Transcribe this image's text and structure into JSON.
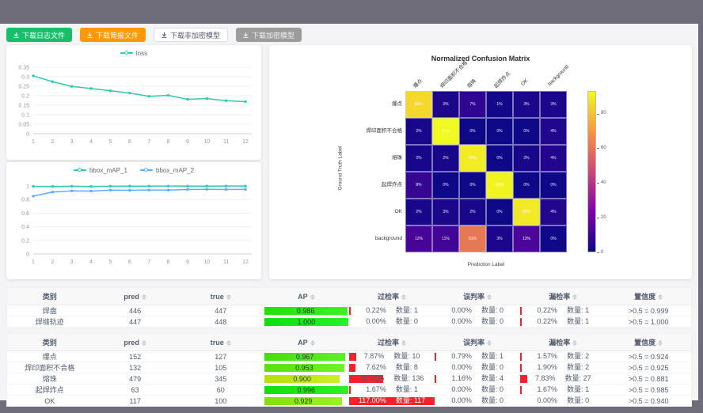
{
  "toolbar": {
    "buttons": [
      {
        "label": "下载日志文件",
        "variant": "success"
      },
      {
        "label": "下载简报文件",
        "variant": "warning"
      },
      {
        "label": "下载非加密模型",
        "variant": "default"
      },
      {
        "label": "下载加密模型",
        "variant": "disabled"
      }
    ]
  },
  "chart_data": [
    {
      "type": "line",
      "title": "",
      "legend": [
        "loss"
      ],
      "x": [
        1,
        2,
        3,
        4,
        5,
        6,
        7,
        8,
        9,
        10,
        11,
        12
      ],
      "series": [
        {
          "name": "loss",
          "color": "#2fc9b2",
          "values": [
            0.305,
            0.274,
            0.249,
            0.238,
            0.226,
            0.214,
            0.197,
            0.202,
            0.181,
            0.185,
            0.174,
            0.169
          ]
        }
      ],
      "ylim": [
        0,
        0.35
      ],
      "yticks": [
        0,
        0.05,
        0.1,
        0.15,
        0.2,
        0.25,
        0.3,
        0.35
      ],
      "grid": true,
      "legend_position": "top"
    },
    {
      "type": "line",
      "title": "",
      "legend": [
        "bbox_mAP_1",
        "bbox_mAP_2"
      ],
      "x": [
        1,
        2,
        3,
        4,
        5,
        6,
        7,
        8,
        9,
        10,
        11,
        12
      ],
      "series": [
        {
          "name": "bbox_mAP_1",
          "color": "#2fc9b2",
          "values": [
            0.993,
            0.992,
            0.995,
            0.992,
            0.996,
            0.997,
            0.997,
            0.998,
            0.997,
            0.997,
            0.998,
            0.998
          ]
        },
        {
          "name": "bbox_mAP_2",
          "color": "#5cadff",
          "values": [
            0.85,
            0.91,
            0.928,
            0.925,
            0.938,
            0.936,
            0.94,
            0.939,
            0.948,
            0.95,
            0.948,
            0.949
          ]
        }
      ],
      "ylim": [
        0,
        1
      ],
      "yticks": [
        0,
        0.2,
        0.4,
        0.6,
        0.8,
        1
      ],
      "grid": true,
      "legend_position": "top"
    },
    {
      "type": "heatmap",
      "title": "Normalized Confusion Matrix",
      "xlabel": "Prediction Label",
      "ylabel": "Ground Truth Label",
      "labels": [
        "爆点",
        "焊印面积不合格",
        "熔珠",
        "起焊炸点",
        "OK",
        "background"
      ],
      "matrix": [
        [
          85,
          3,
          7,
          1,
          3,
          3
        ],
        [
          2,
          93,
          0,
          0,
          0,
          4
        ],
        [
          2,
          2,
          90,
          0,
          2,
          4
        ],
        [
          8,
          0,
          0,
          92,
          0,
          0
        ],
        [
          2,
          3,
          2,
          0,
          89,
          4
        ],
        [
          12,
          11,
          61,
          3,
          13,
          0
        ]
      ],
      "unit": "%",
      "vmax": 93,
      "colormap": "plasma",
      "colorbar_ticks": [
        0,
        20,
        40,
        60,
        80
      ],
      "legend_position": "right"
    }
  ],
  "tables": [
    {
      "headers": [
        {
          "label": "类别",
          "sortable": false
        },
        {
          "label": "pred",
          "sortable": true
        },
        {
          "label": "true",
          "sortable": true
        },
        {
          "label": "AP",
          "sortable": true
        },
        {
          "label": "过检率",
          "sortable": true
        },
        {
          "label": "误判率",
          "sortable": true
        },
        {
          "label": "漏检率",
          "sortable": true
        },
        {
          "label": "置信度",
          "sortable": true
        }
      ],
      "rows": [
        {
          "name": "焊盘",
          "pred": "446",
          "true": "447",
          "ap": "0.986",
          "rates": [
            {
              "pct": "0.22%",
              "count": "数量: 1",
              "value": 0.22
            },
            {
              "pct": "0.00%",
              "count": "数量: 0",
              "value": 0
            },
            {
              "pct": "0.22%",
              "count": "数量: 1",
              "value": 0.22
            }
          ],
          "conf": ">0.5 = 0.999"
        },
        {
          "name": "焊缝轨迹",
          "pred": "447",
          "true": "448",
          "ap": "1.000",
          "rates": [
            {
              "pct": "0.00%",
              "count": "数量: 0",
              "value": 0
            },
            {
              "pct": "0.00%",
              "count": "数量: 0",
              "value": 0
            },
            {
              "pct": "0.22%",
              "count": "数量: 1",
              "value": 0.22
            }
          ],
          "conf": ">0.5 = 1.000"
        }
      ]
    },
    {
      "headers": [
        {
          "label": "类别",
          "sortable": false
        },
        {
          "label": "pred",
          "sortable": true
        },
        {
          "label": "true",
          "sortable": true
        },
        {
          "label": "AP",
          "sortable": true
        },
        {
          "label": "过检率",
          "sortable": true
        },
        {
          "label": "误判率",
          "sortable": true
        },
        {
          "label": "漏检率",
          "sortable": true
        },
        {
          "label": "置信度",
          "sortable": true
        }
      ],
      "rows": [
        {
          "name": "爆点",
          "pred": "152",
          "true": "127",
          "ap": "0.967",
          "rates": [
            {
              "pct": "7.87%",
              "count": "数量: 10",
              "value": 7.87
            },
            {
              "pct": "0.79%",
              "count": "数量: 1",
              "value": 0.79
            },
            {
              "pct": "1.57%",
              "count": "数量: 2",
              "value": 1.57
            }
          ],
          "conf": ">0.5 = 0.924"
        },
        {
          "name": "焊印面积不合格",
          "pred": "132",
          "true": "105",
          "ap": "0.953",
          "rates": [
            {
              "pct": "7.62%",
              "count": "数量: 8",
              "value": 7.62
            },
            {
              "pct": "0.00%",
              "count": "数量: 0",
              "value": 0
            },
            {
              "pct": "1.90%",
              "count": "数量: 2",
              "value": 1.9
            }
          ],
          "conf": ">0.5 = 0.925"
        },
        {
          "name": "熔珠",
          "pred": "479",
          "true": "345",
          "ap": "0.900",
          "rates": [
            {
              "pct": "39.42%",
              "count": "数量: 136",
              "value": 39.42
            },
            {
              "pct": "1.16%",
              "count": "数量: 4",
              "value": 1.16
            },
            {
              "pct": "7.83%",
              "count": "数量: 27",
              "value": 7.83
            }
          ],
          "conf": ">0.5 = 0.881"
        },
        {
          "name": "起焊炸点",
          "pred": "63",
          "true": "60",
          "ap": "0.996",
          "rates": [
            {
              "pct": "1.67%",
              "count": "数量: 1",
              "value": 1.67
            },
            {
              "pct": "0.00%",
              "count": "数量: 0",
              "value": 0
            },
            {
              "pct": "1.67%",
              "count": "数量: 1",
              "value": 1.67
            }
          ],
          "conf": ">0.5 = 0.985"
        },
        {
          "name": "OK",
          "pred": "117",
          "true": "100",
          "ap": "0.929",
          "rates": [
            {
              "pct": "117.00%",
              "count": "数量: 117",
              "value": 117
            },
            {
              "pct": "0.00%",
              "count": "数量: 0",
              "value": 0
            },
            {
              "pct": "0.00%",
              "count": "数量: 0",
              "value": 0
            }
          ],
          "conf": ">0.5 = 0.940"
        }
      ]
    }
  ],
  "colors": {
    "accent_teal": "#2fc9b2",
    "accent_blue": "#5cadff",
    "button_green": "#19be6b",
    "button_orange": "#ff9900",
    "rate_bar_red": "#f5222d",
    "frame_gray": "#6f6d79"
  }
}
